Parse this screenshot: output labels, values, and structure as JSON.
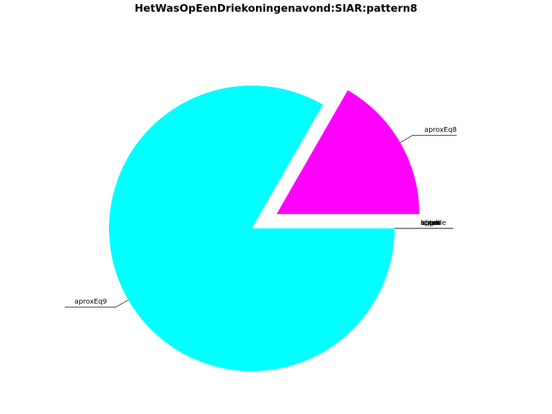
{
  "chart_data": {
    "type": "pie",
    "title": "HetWasOpEenDriekoningenavond:SIAR:pattern8",
    "slices": [
      {
        "label": "aprox",
        "value": 0,
        "color": "#0000ff"
      },
      {
        "label": "aproxEq8",
        "value": 16.7,
        "color": "#ff00ff"
      },
      {
        "label": "aproxEq9",
        "value": 83.3,
        "color": "#00ffff"
      },
      {
        "label": "blind",
        "value": 0,
        "color": "#888888"
      },
      {
        "label": "upper",
        "value": 0,
        "color": "#888888"
      },
      {
        "label": "equal",
        "value": 0,
        "color": "#888888"
      },
      {
        "label": "lower",
        "value": 0,
        "color": "#888888"
      },
      {
        "label": "apgro",
        "value": 0,
        "color": "#888888"
      },
      {
        "label": "outside",
        "value": 0,
        "color": "#888888"
      }
    ],
    "explode": {
      "aproxEq8": 0.2
    }
  }
}
